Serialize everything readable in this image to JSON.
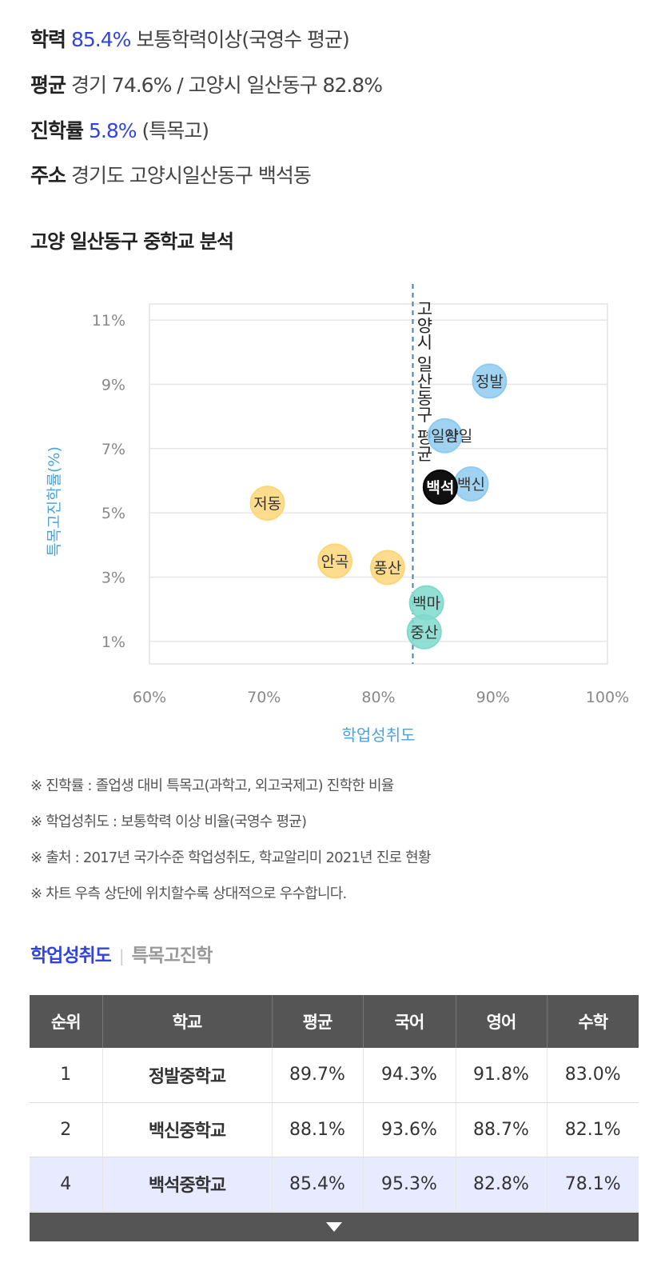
{
  "summary": {
    "achievement_label": "학력",
    "achievement_value": "85.4%",
    "achievement_desc": "보통학력이상(국영수 평균)",
    "average_label": "평균",
    "average_value": "경기 74.6% / 고양시 일산동구 82.8%",
    "advance_label": "진학률",
    "advance_value": "5.8%",
    "advance_desc": "(특목고)",
    "address_label": "주소",
    "address_value": "경기도 고양시일산동구 백석동"
  },
  "section_title": "고양 일산동구 중학교 분석",
  "chart_data": {
    "type": "scatter",
    "xlabel": "학업성취도",
    "ylabel": "특목고진학률(%)",
    "xlim": [
      60,
      100
    ],
    "ylim": [
      0.3,
      11.5
    ],
    "xticks": [
      60,
      70,
      80,
      90,
      100
    ],
    "xtick_labels": [
      "60%",
      "70%",
      "80%",
      "90%",
      "100%"
    ],
    "yticks": [
      1,
      3,
      5,
      7,
      9,
      11
    ],
    "ytick_labels": [
      "1%",
      "3%",
      "5%",
      "7%",
      "9%",
      "11%"
    ],
    "grid": true,
    "reference_line": {
      "x": 83.0,
      "label": "고양시 일산동구 평균"
    },
    "points": [
      {
        "name": "정발",
        "x": 89.7,
        "y": 9.1,
        "group": "blue"
      },
      {
        "name": "일산",
        "x": 85.8,
        "y": 7.4,
        "group": "blue"
      },
      {
        "name": "양일",
        "x": 87.0,
        "y": 7.4,
        "group": "label"
      },
      {
        "name": "백신",
        "x": 88.1,
        "y": 5.9,
        "group": "blue"
      },
      {
        "name": "백석",
        "x": 85.4,
        "y": 5.8,
        "group": "self"
      },
      {
        "name": "저동",
        "x": 70.3,
        "y": 5.3,
        "group": "yellow"
      },
      {
        "name": "안곡",
        "x": 76.2,
        "y": 3.5,
        "group": "yellow"
      },
      {
        "name": "풍산",
        "x": 80.8,
        "y": 3.3,
        "group": "yellow"
      },
      {
        "name": "백마",
        "x": 84.2,
        "y": 2.2,
        "group": "teal"
      },
      {
        "name": "중산",
        "x": 84.0,
        "y": 1.3,
        "group": "teal"
      }
    ],
    "colors": {
      "blue": "#8fcbf0",
      "yellow": "#fdd679",
      "teal": "#7fdacb",
      "self": "#111111",
      "axis_label": "#4aa3e0",
      "reference_line": "#4a7fb0"
    }
  },
  "notes": [
    "※ 진학률 : 졸업생 대비 특목고(과학고, 외고국제고) 진학한 비율",
    "※ 학업성취도 : 보통학력 이상 비율(국영수 평균)",
    "※ 출처 : 2017년 국가수준 학업성취도, 학교알리미 2021년 진로 현황",
    "※ 차트 우측 상단에 위치할수록 상대적으로 우수합니다."
  ],
  "tabs": {
    "active": "학업성취도",
    "separator": "|",
    "inactive": "특목고진학"
  },
  "table": {
    "headers": [
      "순위",
      "학교",
      "평균",
      "국어",
      "영어",
      "수학"
    ],
    "rows": [
      {
        "rank": "1",
        "school": "정발중학교",
        "avg": "89.7%",
        "kor": "94.3%",
        "eng": "91.8%",
        "math": "83.0%"
      },
      {
        "rank": "2",
        "school": "백신중학교",
        "avg": "88.1%",
        "kor": "93.6%",
        "eng": "88.7%",
        "math": "82.1%"
      },
      {
        "rank": "4",
        "school": "백석중학교",
        "avg": "85.4%",
        "kor": "95.3%",
        "eng": "82.8%",
        "math": "78.1%"
      }
    ]
  }
}
